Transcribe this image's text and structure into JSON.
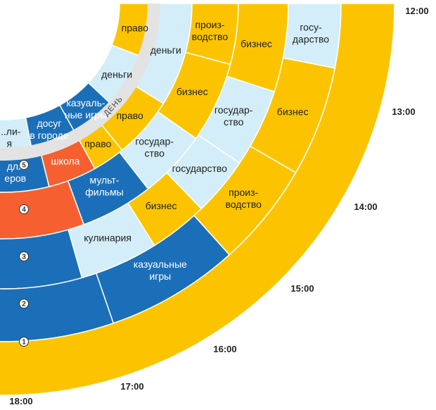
{
  "colors": {
    "yellow": "#fcc400",
    "light-blue": "#d3eef8",
    "dark-blue": "#1b6fb8",
    "orange": "#f66030",
    "gray-band": "#e3e3e3",
    "separator": "#ffffff"
  },
  "day_label": "ДЕНЬ",
  "ring_numbers": [
    "1",
    "2",
    "3",
    "4",
    "5"
  ],
  "time_labels": [
    "12:00",
    "13:00",
    "14:00",
    "15:00",
    "16:00",
    "17:00",
    "18:00"
  ],
  "segments": [
    {
      "ring": 5,
      "text": [
        "право"
      ],
      "color": "yellow"
    },
    {
      "ring": 5,
      "text": [
        "деньги"
      ],
      "color": "light-blue"
    },
    {
      "ring": 5,
      "text": [
        "казуаль-",
        "ные игры"
      ],
      "color": "dark-blue"
    },
    {
      "ring": 5,
      "text": [
        "досуг",
        "в городе"
      ],
      "color": "dark-blue"
    },
    {
      "ring": 5,
      "text": [
        "...ли-",
        "я"
      ],
      "color": "light-blue"
    },
    {
      "ring": 4,
      "text": [
        "деньги"
      ],
      "color": "light-blue"
    },
    {
      "ring": 4,
      "text": [
        "право"
      ],
      "color": "yellow"
    },
    {
      "ring": 4,
      "text": [
        "право"
      ],
      "color": "yellow"
    },
    {
      "ring": 4,
      "text": [
        "школа"
      ],
      "color": "orange"
    },
    {
      "ring": 4,
      "text": [
        "для",
        "еров"
      ],
      "color": "dark-blue"
    },
    {
      "ring": 3,
      "text": [
        "произ-",
        "водство"
      ],
      "color": "yellow"
    },
    {
      "ring": 3,
      "text": [
        "бизнес"
      ],
      "color": "yellow"
    },
    {
      "ring": 3,
      "text": [
        "государ-",
        "ство"
      ],
      "color": "light-blue"
    },
    {
      "ring": 3,
      "text": [
        "мульт-",
        "фильмы"
      ],
      "color": "dark-blue"
    },
    {
      "ring": 3,
      "text": [],
      "color": "orange"
    },
    {
      "ring": 2,
      "text": [
        "бизнес"
      ],
      "color": "yellow"
    },
    {
      "ring": 2,
      "text": [
        "государ-",
        "ство"
      ],
      "color": "light-blue"
    },
    {
      "ring": 2,
      "text": [
        "государство"
      ],
      "color": "light-blue"
    },
    {
      "ring": 2,
      "text": [
        "бизнес"
      ],
      "color": "yellow"
    },
    {
      "ring": 2,
      "text": [
        "кулинария"
      ],
      "color": "light-blue"
    },
    {
      "ring": 2,
      "text": [],
      "color": "dark-blue"
    },
    {
      "ring": 1,
      "text": [
        "госу-",
        "дарство"
      ],
      "color": "light-blue"
    },
    {
      "ring": 1,
      "text": [
        "бизнес"
      ],
      "color": "yellow"
    },
    {
      "ring": 1,
      "text": [
        "произ-",
        "водство"
      ],
      "color": "yellow"
    },
    {
      "ring": 1,
      "text": [
        "казуальные",
        "игры"
      ],
      "color": "dark-blue"
    },
    {
      "ring": 1,
      "text": [],
      "color": "dark-blue"
    },
    {
      "ring": 0,
      "text": [],
      "color": "yellow"
    }
  ]
}
